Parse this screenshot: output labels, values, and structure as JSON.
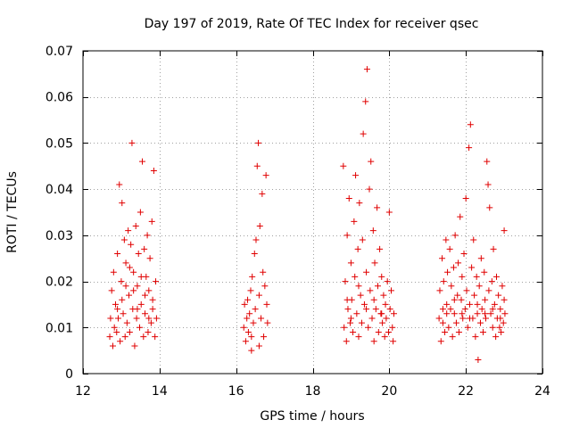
{
  "chart_data": {
    "type": "scatter",
    "title": "Day 197 of 2019, Rate Of TEC Index for receiver qsec",
    "xlabel": "GPS time / hours",
    "ylabel": "ROTI / TECUs",
    "xlim": [
      12,
      24
    ],
    "ylim": [
      0,
      0.07
    ],
    "x_ticks": [
      12,
      14,
      16,
      18,
      20,
      22,
      24
    ],
    "x_tick_labels": [
      "12",
      "14",
      "16",
      "18",
      "20",
      "22",
      "24"
    ],
    "y_ticks": [
      0,
      0.01,
      0.02,
      0.03,
      0.04,
      0.05,
      0.06,
      0.07
    ],
    "y_tick_labels": [
      "0",
      "0.01",
      "0.02",
      "0.03",
      "0.04",
      "0.05",
      "0.06",
      "0.07"
    ],
    "grid": true,
    "marker": "plus",
    "color": "#e00000",
    "series": [
      {
        "name": "ROTI",
        "points": [
          [
            12.7,
            0.008
          ],
          [
            12.72,
            0.012
          ],
          [
            12.75,
            0.018
          ],
          [
            12.78,
            0.006
          ],
          [
            12.8,
            0.022
          ],
          [
            12.82,
            0.01
          ],
          [
            12.85,
            0.015
          ],
          [
            12.88,
            0.009
          ],
          [
            12.9,
            0.026
          ],
          [
            12.92,
            0.012
          ],
          [
            12.95,
            0.041
          ],
          [
            12.97,
            0.007
          ],
          [
            13.0,
            0.02
          ],
          [
            13.02,
            0.037
          ],
          [
            13.05,
            0.013
          ],
          [
            13.08,
            0.029
          ],
          [
            13.1,
            0.008
          ],
          [
            13.12,
            0.024
          ],
          [
            13.15,
            0.011
          ],
          [
            13.18,
            0.031
          ],
          [
            13.2,
            0.017
          ],
          [
            13.22,
            0.009
          ],
          [
            13.25,
            0.028
          ],
          [
            13.28,
            0.05
          ],
          [
            13.3,
            0.014
          ],
          [
            13.32,
            0.022
          ],
          [
            13.35,
            0.006
          ],
          [
            13.38,
            0.032
          ],
          [
            13.4,
            0.012
          ],
          [
            13.42,
            0.019
          ],
          [
            13.45,
            0.026
          ],
          [
            13.48,
            0.01
          ],
          [
            13.5,
            0.035
          ],
          [
            13.52,
            0.015
          ],
          [
            13.55,
            0.046
          ],
          [
            13.58,
            0.008
          ],
          [
            13.6,
            0.027
          ],
          [
            13.62,
            0.013
          ],
          [
            13.65,
            0.021
          ],
          [
            13.68,
            0.03
          ],
          [
            13.7,
            0.009
          ],
          [
            13.72,
            0.018
          ],
          [
            13.75,
            0.025
          ],
          [
            13.78,
            0.011
          ],
          [
            13.8,
            0.033
          ],
          [
            13.82,
            0.014
          ],
          [
            13.85,
            0.044
          ],
          [
            13.88,
            0.008
          ],
          [
            13.9,
            0.02
          ],
          [
            13.92,
            0.012
          ],
          [
            13.02,
            0.016
          ],
          [
            13.12,
            0.019
          ],
          [
            13.22,
            0.023
          ],
          [
            13.32,
            0.018
          ],
          [
            13.42,
            0.014
          ],
          [
            13.52,
            0.021
          ],
          [
            13.62,
            0.017
          ],
          [
            13.72,
            0.012
          ],
          [
            13.82,
            0.016
          ],
          [
            12.9,
            0.014
          ],
          [
            16.2,
            0.01
          ],
          [
            16.22,
            0.015
          ],
          [
            16.25,
            0.007
          ],
          [
            16.28,
            0.012
          ],
          [
            16.3,
            0.016
          ],
          [
            16.32,
            0.009
          ],
          [
            16.35,
            0.013
          ],
          [
            16.38,
            0.018
          ],
          [
            16.4,
            0.008
          ],
          [
            16.42,
            0.021
          ],
          [
            16.45,
            0.011
          ],
          [
            16.48,
            0.026
          ],
          [
            16.5,
            0.014
          ],
          [
            16.52,
            0.029
          ],
          [
            16.55,
            0.045
          ],
          [
            16.58,
            0.05
          ],
          [
            16.6,
            0.017
          ],
          [
            16.62,
            0.032
          ],
          [
            16.65,
            0.012
          ],
          [
            16.68,
            0.039
          ],
          [
            16.7,
            0.022
          ],
          [
            16.72,
            0.008
          ],
          [
            16.75,
            0.019
          ],
          [
            16.78,
            0.043
          ],
          [
            16.8,
            0.015
          ],
          [
            16.82,
            0.011
          ],
          [
            16.4,
            0.005
          ],
          [
            16.6,
            0.006
          ],
          [
            18.8,
            0.045
          ],
          [
            18.82,
            0.01
          ],
          [
            18.85,
            0.02
          ],
          [
            18.88,
            0.007
          ],
          [
            18.9,
            0.03
          ],
          [
            18.92,
            0.014
          ],
          [
            18.95,
            0.038
          ],
          [
            18.98,
            0.011
          ],
          [
            19.0,
            0.024
          ],
          [
            19.02,
            0.016
          ],
          [
            19.05,
            0.009
          ],
          [
            19.08,
            0.033
          ],
          [
            19.1,
            0.021
          ],
          [
            19.12,
            0.043
          ],
          [
            19.15,
            0.013
          ],
          [
            19.18,
            0.027
          ],
          [
            19.2,
            0.008
          ],
          [
            19.22,
            0.037
          ],
          [
            19.25,
            0.017
          ],
          [
            19.28,
            0.011
          ],
          [
            19.3,
            0.029
          ],
          [
            19.32,
            0.052
          ],
          [
            19.35,
            0.015
          ],
          [
            19.38,
            0.059
          ],
          [
            19.4,
            0.022
          ],
          [
            19.42,
            0.066
          ],
          [
            19.45,
            0.01
          ],
          [
            19.48,
            0.04
          ],
          [
            19.5,
            0.018
          ],
          [
            19.52,
            0.046
          ],
          [
            19.55,
            0.012
          ],
          [
            19.58,
            0.031
          ],
          [
            19.6,
            0.007
          ],
          [
            19.62,
            0.024
          ],
          [
            19.65,
            0.014
          ],
          [
            19.68,
            0.036
          ],
          [
            19.7,
            0.019
          ],
          [
            19.72,
            0.009
          ],
          [
            19.75,
            0.027
          ],
          [
            19.78,
            0.013
          ],
          [
            19.8,
            0.021
          ],
          [
            19.82,
            0.011
          ],
          [
            19.85,
            0.017
          ],
          [
            19.88,
            0.008
          ],
          [
            19.9,
            0.015
          ],
          [
            19.92,
            0.012
          ],
          [
            19.95,
            0.02
          ],
          [
            19.98,
            0.009
          ],
          [
            20.0,
            0.035
          ],
          [
            20.02,
            0.014
          ],
          [
            20.05,
            0.018
          ],
          [
            20.08,
            0.01
          ],
          [
            20.1,
            0.007
          ],
          [
            20.12,
            0.013
          ],
          [
            19.0,
            0.012
          ],
          [
            19.2,
            0.019
          ],
          [
            19.4,
            0.014
          ],
          [
            19.6,
            0.016
          ],
          [
            19.8,
            0.013
          ],
          [
            18.9,
            0.016
          ],
          [
            21.3,
            0.012
          ],
          [
            21.32,
            0.018
          ],
          [
            21.35,
            0.007
          ],
          [
            21.38,
            0.025
          ],
          [
            21.4,
            0.011
          ],
          [
            21.42,
            0.02
          ],
          [
            21.45,
            0.009
          ],
          [
            21.48,
            0.029
          ],
          [
            21.5,
            0.015
          ],
          [
            21.52,
            0.022
          ],
          [
            21.55,
            0.01
          ],
          [
            21.58,
            0.027
          ],
          [
            21.6,
            0.014
          ],
          [
            21.62,
            0.019
          ],
          [
            21.65,
            0.008
          ],
          [
            21.68,
            0.023
          ],
          [
            21.7,
            0.013
          ],
          [
            21.72,
            0.03
          ],
          [
            21.75,
            0.011
          ],
          [
            21.78,
            0.017
          ],
          [
            21.8,
            0.024
          ],
          [
            21.82,
            0.009
          ],
          [
            21.85,
            0.034
          ],
          [
            21.88,
            0.016
          ],
          [
            21.9,
            0.021
          ],
          [
            21.92,
            0.012
          ],
          [
            21.95,
            0.026
          ],
          [
            21.98,
            0.014
          ],
          [
            22.0,
            0.038
          ],
          [
            22.02,
            0.018
          ],
          [
            22.05,
            0.01
          ],
          [
            22.08,
            0.049
          ],
          [
            22.1,
            0.015
          ],
          [
            22.12,
            0.054
          ],
          [
            22.15,
            0.023
          ],
          [
            22.18,
            0.012
          ],
          [
            22.2,
            0.029
          ],
          [
            22.22,
            0.017
          ],
          [
            22.25,
            0.008
          ],
          [
            22.28,
            0.021
          ],
          [
            22.3,
            0.013
          ],
          [
            22.32,
            0.003
          ],
          [
            22.35,
            0.019
          ],
          [
            22.38,
            0.011
          ],
          [
            22.4,
            0.025
          ],
          [
            22.42,
            0.014
          ],
          [
            22.45,
            0.009
          ],
          [
            22.48,
            0.022
          ],
          [
            22.5,
            0.016
          ],
          [
            22.52,
            0.012
          ],
          [
            22.55,
            0.046
          ],
          [
            22.58,
            0.041
          ],
          [
            22.6,
            0.018
          ],
          [
            22.62,
            0.036
          ],
          [
            22.65,
            0.013
          ],
          [
            22.68,
            0.02
          ],
          [
            22.7,
            0.01
          ],
          [
            22.72,
            0.027
          ],
          [
            22.75,
            0.015
          ],
          [
            22.78,
            0.008
          ],
          [
            22.8,
            0.021
          ],
          [
            22.82,
            0.012
          ],
          [
            22.85,
            0.017
          ],
          [
            22.88,
            0.01
          ],
          [
            22.9,
            0.014
          ],
          [
            22.92,
            0.009
          ],
          [
            22.95,
            0.019
          ],
          [
            22.98,
            0.011
          ],
          [
            23.0,
            0.031
          ],
          [
            23.02,
            0.013
          ],
          [
            21.5,
            0.013
          ],
          [
            21.7,
            0.016
          ],
          [
            21.9,
            0.013
          ],
          [
            22.1,
            0.012
          ],
          [
            22.3,
            0.015
          ],
          [
            22.5,
            0.013
          ],
          [
            22.7,
            0.014
          ],
          [
            22.9,
            0.012
          ],
          [
            21.4,
            0.014
          ],
          [
            23.0,
            0.016
          ]
        ]
      }
    ]
  }
}
